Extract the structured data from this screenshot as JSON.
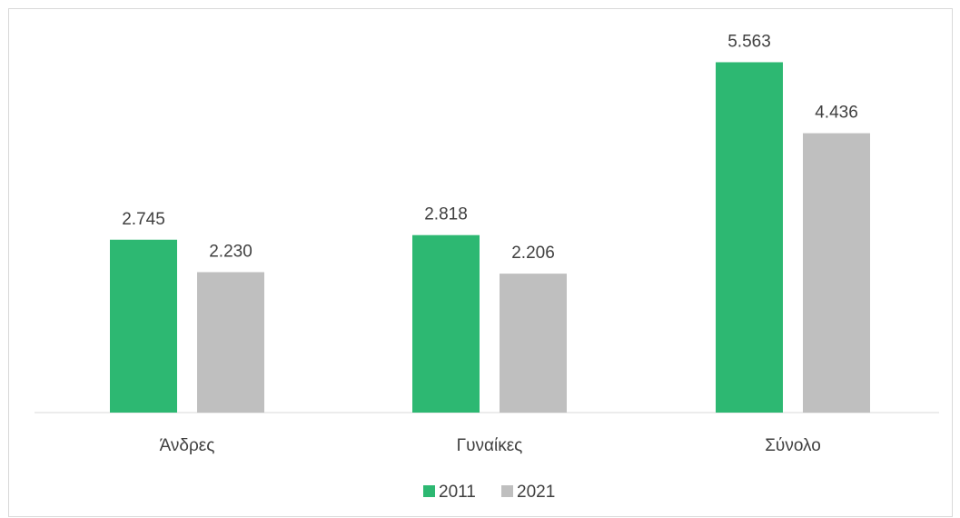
{
  "chart_data": {
    "type": "bar",
    "title": "",
    "xlabel": "",
    "ylabel": "",
    "categories": [
      "Άνδρες",
      "Γυναίκες",
      "Σύνολο"
    ],
    "series": [
      {
        "name": "2011",
        "values": [
          2.745,
          2.818,
          5.563
        ],
        "labels": [
          "2.745",
          "2.818",
          "5.563"
        ],
        "color": "#2db872"
      },
      {
        "name": "2021",
        "values": [
          2.23,
          2.206,
          4.436
        ],
        "labels": [
          "2.230",
          "2.206",
          "4.436"
        ],
        "color": "#bfbfbf"
      }
    ],
    "ylim": [
      0,
      6.2
    ],
    "grid": false,
    "legend_position": "bottom"
  }
}
